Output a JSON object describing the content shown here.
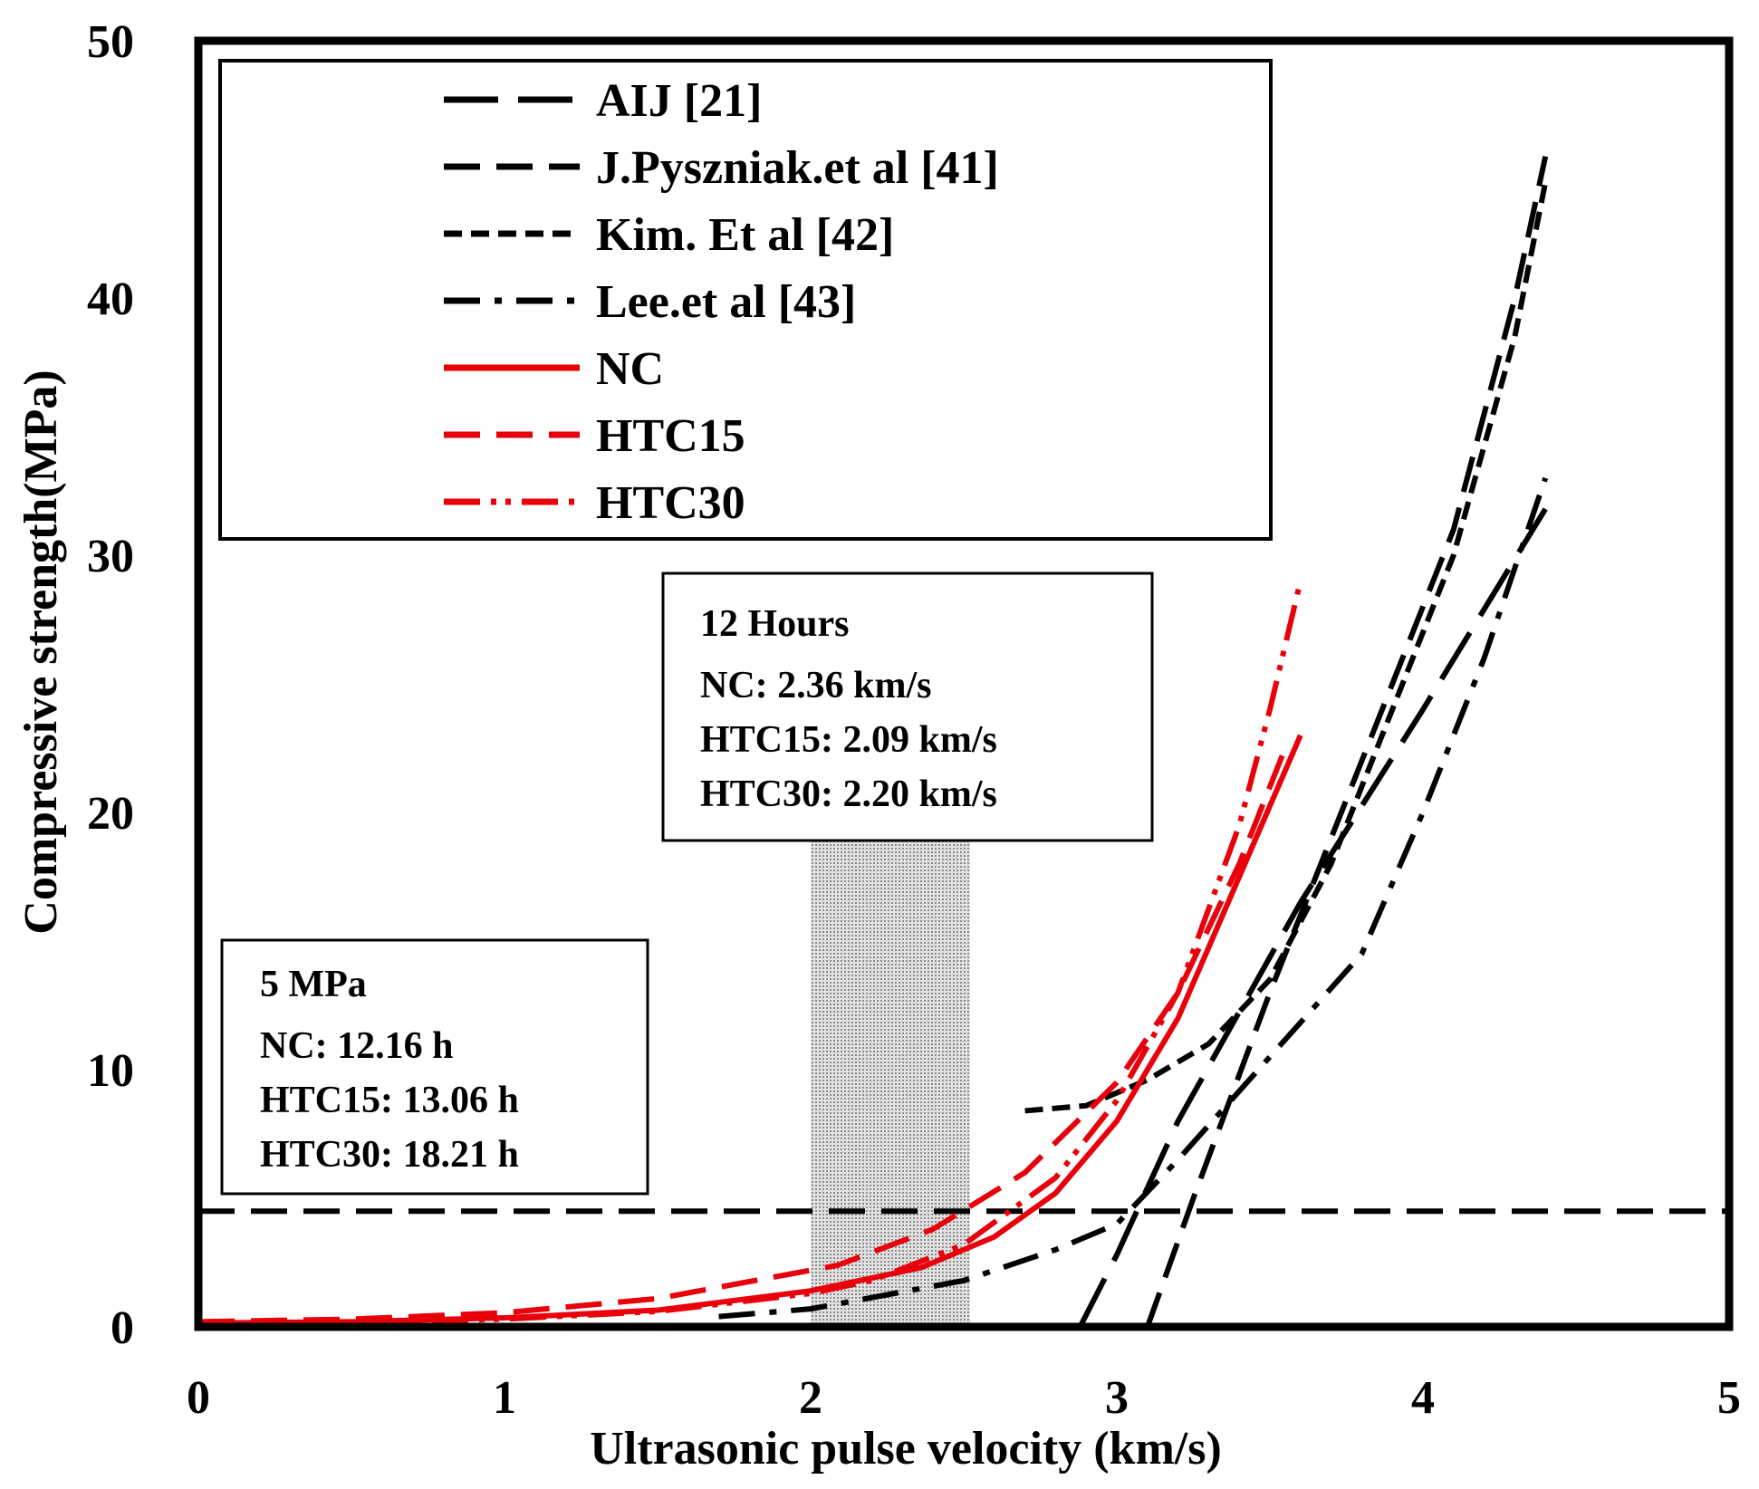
{
  "chart_data": {
    "type": "line",
    "title": "",
    "xlabel": "Ultrasonic pulse velocity (km/s)",
    "ylabel": "Compressive strength(MPa)",
    "xlim": [
      0,
      5
    ],
    "ylim": [
      0,
      50
    ],
    "xticks": [
      "0",
      "1",
      "2",
      "3",
      "4",
      "5"
    ],
    "yticks": [
      "0",
      "10",
      "20",
      "30",
      "40",
      "50"
    ],
    "grid": false,
    "legend_position": "top-left",
    "colors": {
      "black": "#000000",
      "red": "#e8000b",
      "shade": "#bdbdbd"
    },
    "series": [
      {
        "name": "AIJ [21]",
        "color": "#000000",
        "style": "long-dash",
        "points": [
          [
            2.88,
            0
          ],
          [
            3.0,
            2.8
          ],
          [
            3.2,
            8.0
          ],
          [
            3.6,
            16.5
          ],
          [
            4.0,
            24.0
          ],
          [
            4.4,
            31.8
          ]
        ]
      },
      {
        "name": "J.Pyszniak.et al [41]",
        "color": "#000000",
        "style": "dash",
        "points": [
          [
            3.1,
            0
          ],
          [
            3.25,
            5.0
          ],
          [
            3.5,
            13.0
          ],
          [
            3.8,
            22.0
          ],
          [
            4.1,
            31.0
          ],
          [
            4.3,
            40.0
          ],
          [
            4.4,
            45.5
          ]
        ]
      },
      {
        "name": "Kim. Et al [42]",
        "color": "#000000",
        "style": "short-dash",
        "points": [
          [
            2.7,
            8.4
          ],
          [
            2.9,
            8.6
          ],
          [
            3.1,
            9.6
          ],
          [
            3.3,
            11.0
          ],
          [
            3.5,
            13.5
          ],
          [
            3.7,
            18.0
          ],
          [
            3.9,
            24.0
          ],
          [
            4.1,
            30.0
          ],
          [
            4.3,
            38.5
          ],
          [
            4.4,
            44.5
          ]
        ]
      },
      {
        "name": "Lee.et al [43]",
        "color": "#000000",
        "style": "dash-dot",
        "points": [
          [
            1.7,
            0.4
          ],
          [
            2.0,
            0.7
          ],
          [
            2.5,
            1.8
          ],
          [
            2.8,
            3.0
          ],
          [
            3.0,
            4.0
          ],
          [
            3.2,
            6.5
          ],
          [
            3.5,
            10.5
          ],
          [
            3.8,
            14.5
          ],
          [
            4.0,
            20.0
          ],
          [
            4.2,
            26.0
          ],
          [
            4.4,
            33.0
          ]
        ]
      },
      {
        "name": "NC",
        "color": "#e8000b",
        "style": "solid",
        "points": [
          [
            0,
            0.15
          ],
          [
            0.5,
            0.2
          ],
          [
            1.0,
            0.35
          ],
          [
            1.5,
            0.65
          ],
          [
            2.0,
            1.4
          ],
          [
            2.36,
            2.3
          ],
          [
            2.6,
            3.5
          ],
          [
            2.8,
            5.2
          ],
          [
            3.0,
            8.0
          ],
          [
            3.2,
            12.0
          ],
          [
            3.4,
            17.5
          ],
          [
            3.6,
            23.0
          ]
        ]
      },
      {
        "name": "HTC15",
        "color": "#e8000b",
        "style": "dash",
        "points": [
          [
            0,
            0.2
          ],
          [
            0.5,
            0.3
          ],
          [
            1.0,
            0.55
          ],
          [
            1.5,
            1.1
          ],
          [
            2.09,
            2.4
          ],
          [
            2.4,
            3.8
          ],
          [
            2.7,
            6.0
          ],
          [
            3.0,
            9.5
          ],
          [
            3.2,
            13.0
          ],
          [
            3.4,
            18.0
          ],
          [
            3.55,
            22.5
          ]
        ]
      },
      {
        "name": "HTC30",
        "color": "#e8000b",
        "style": "dash-dot-dot",
        "points": [
          [
            0,
            0.1
          ],
          [
            0.5,
            0.15
          ],
          [
            1.0,
            0.3
          ],
          [
            1.5,
            0.6
          ],
          [
            2.0,
            1.3
          ],
          [
            2.2,
            1.8
          ],
          [
            2.5,
            3.2
          ],
          [
            2.8,
            5.8
          ],
          [
            3.0,
            8.8
          ],
          [
            3.2,
            13.0
          ],
          [
            3.4,
            19.5
          ],
          [
            3.5,
            24.0
          ],
          [
            3.6,
            29.0
          ]
        ]
      }
    ],
    "reference_line": {
      "y": 4.5,
      "style": "dash",
      "color": "#000000"
    },
    "shaded_region": {
      "x_from": 2.0,
      "x_to": 2.52,
      "y_from": 0,
      "y_to": 19
    },
    "annotations": [
      {
        "id": "hours",
        "lines": [
          "12 Hours",
          "NC: 2.36 km/s",
          "HTC15: 2.09 km/s",
          "HTC30: 2.20 km/s"
        ]
      },
      {
        "id": "mpa",
        "lines": [
          "5 MPa",
          "NC: 12.16 h",
          "HTC15: 13.06 h",
          "HTC30: 18.21 h"
        ]
      }
    ]
  }
}
